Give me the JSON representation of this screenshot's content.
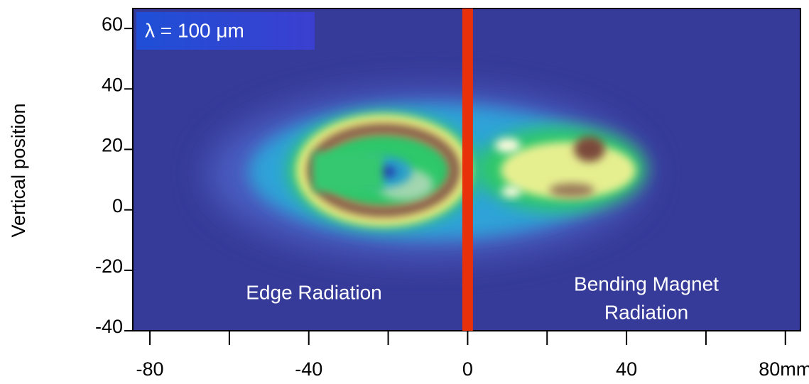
{
  "chart_data": {
    "type": "heatmap",
    "y_label": "Vertical position",
    "xlim": [
      -84.3,
      83.8
    ],
    "ylim": [
      -40,
      66.6
    ],
    "xticks": [
      -80,
      -40,
      0,
      40,
      {
        "value": 80,
        "label": "80mm"
      }
    ],
    "yticks": [
      60,
      40,
      20,
      0,
      -20,
      -40
    ],
    "divider_x": 0,
    "divider_color": "#e8300a",
    "wavelength_label": "λ = 100 μm",
    "annotations": [
      {
        "lines": [
          "Edge Radiation"
        ]
      },
      {
        "lines": [
          "Bending Magnet",
          "Radiation"
        ]
      }
    ]
  }
}
